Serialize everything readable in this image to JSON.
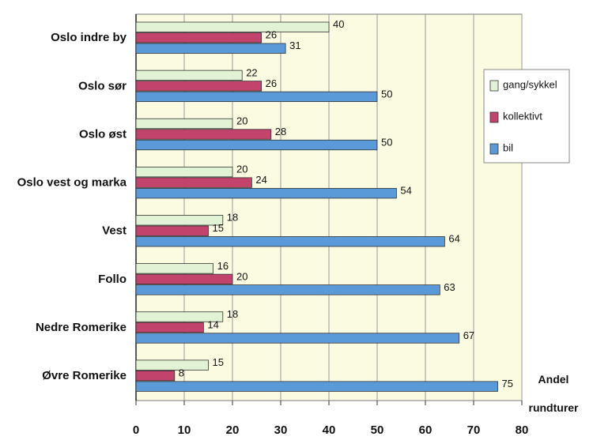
{
  "chart_data": {
    "type": "hbar",
    "x_label": "Andel rundturer",
    "categories": [
      "Oslo indre by",
      "Oslo sør",
      "Oslo øst",
      "Oslo vest og marka",
      "Vest",
      "Follo",
      "Nedre Romerike",
      "Øvre Romerike"
    ],
    "series": [
      {
        "name": "gang/sykkel",
        "color": "#e2f2d4",
        "values": [
          40,
          22,
          20,
          20,
          18,
          16,
          18,
          15
        ]
      },
      {
        "name": "kollektivt",
        "color": "#c2436c",
        "values": [
          26,
          26,
          28,
          24,
          15,
          20,
          14,
          8
        ]
      },
      {
        "name": "bil",
        "color": "#5a9ad8",
        "values": [
          31,
          50,
          50,
          54,
          64,
          63,
          67,
          75
        ]
      }
    ],
    "xlim": [
      0,
      80
    ],
    "xticks": [
      0,
      10,
      20,
      30,
      40,
      50,
      60,
      70,
      80
    ],
    "grid": true,
    "legend": "right"
  }
}
